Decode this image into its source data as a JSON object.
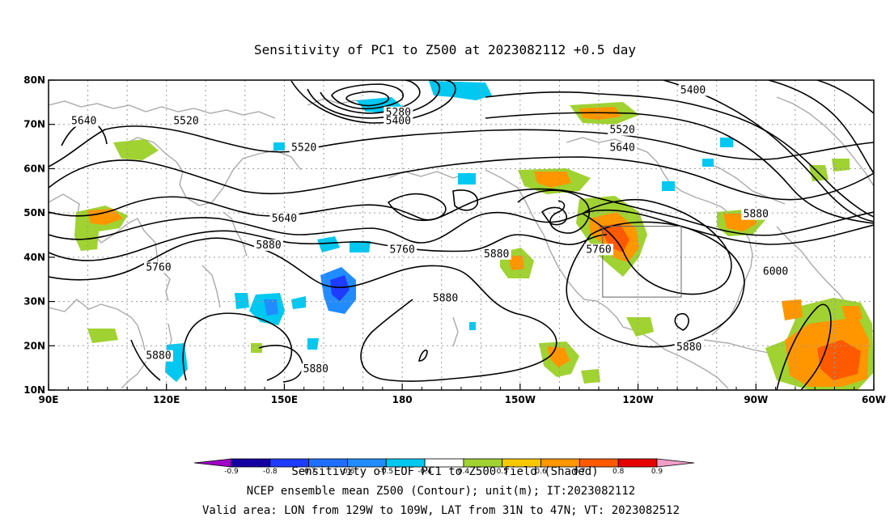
{
  "title": "Sensitivity of PC1 to Z500 at 2023082112 +0.5 day",
  "map": {
    "lon_range": [
      90,
      300
    ],
    "lat_range": [
      10,
      80
    ],
    "x_ticks": [
      {
        "lon": 90,
        "label": "90E"
      },
      {
        "lon": 120,
        "label": "120E"
      },
      {
        "lon": 150,
        "label": "150E"
      },
      {
        "lon": 180,
        "label": "180"
      },
      {
        "lon": 210,
        "label": "150W"
      },
      {
        "lon": 240,
        "label": "120W"
      },
      {
        "lon": 270,
        "label": "90W"
      },
      {
        "lon": 300,
        "label": "60W"
      }
    ],
    "y_ticks": [
      {
        "lat": 80,
        "label": "80N"
      },
      {
        "lat": 70,
        "label": "70N"
      },
      {
        "lat": 60,
        "label": "60N"
      },
      {
        "lat": 50,
        "label": "50N"
      },
      {
        "lat": 40,
        "label": "40N"
      },
      {
        "lat": 30,
        "label": "30N"
      },
      {
        "lat": 20,
        "label": "20N"
      },
      {
        "lat": 10,
        "label": "10N"
      }
    ],
    "grid": "dotted",
    "valid_box": {
      "lon_min": 231,
      "lon_max": 251,
      "lat_min": 31,
      "lat_max": 47
    },
    "contour_labels": [
      {
        "text": "5640",
        "lon": 99,
        "lat": 70
      },
      {
        "text": "5520",
        "lon": 125,
        "lat": 70
      },
      {
        "text": "5520",
        "lon": 155,
        "lat": 64
      },
      {
        "text": "5640",
        "lon": 150,
        "lat": 48
      },
      {
        "text": "5880",
        "lon": 146,
        "lat": 42
      },
      {
        "text": "5760",
        "lon": 118,
        "lat": 37
      },
      {
        "text": "5880",
        "lon": 118,
        "lat": 17
      },
      {
        "text": "5880",
        "lon": 158,
        "lat": 14
      },
      {
        "text": "5280",
        "lon": 179,
        "lat": 72
      },
      {
        "text": "5400",
        "lon": 179,
        "lat": 70
      },
      {
        "text": "5760",
        "lon": 180,
        "lat": 41
      },
      {
        "text": "5880",
        "lon": 191,
        "lat": 30
      },
      {
        "text": "5880",
        "lon": 204,
        "lat": 40
      },
      {
        "text": "5400",
        "lon": 254,
        "lat": 77
      },
      {
        "text": "5520",
        "lon": 236,
        "lat": 68
      },
      {
        "text": "5640",
        "lon": 236,
        "lat": 64
      },
      {
        "text": "5760",
        "lon": 230,
        "lat": 41
      },
      {
        "text": "5880",
        "lon": 270,
        "lat": 49
      },
      {
        "text": "6000",
        "lon": 275,
        "lat": 36
      },
      {
        "text": "5880",
        "lon": 253,
        "lat": 19
      },
      {
        "text": "5520",
        "lon": 315,
        "lat": 53
      },
      {
        "text": "5640",
        "lon": 322,
        "lat": 49
      },
      {
        "text": "5760",
        "lon": 319,
        "lat": 44
      }
    ]
  },
  "colorbar": {
    "labels": [
      "-0.9",
      "-0.8",
      "-0.7",
      "-0.6",
      "-0.5",
      "-0.4",
      "0.4",
      "0.5",
      "0.6",
      "0.7",
      "0.8",
      "0.9"
    ],
    "colors": [
      "#a000c8",
      "#1400a0",
      "#1e3cff",
      "#1f6fff",
      "#208cff",
      "#00c8f0",
      "#ffffff",
      "#a0d232",
      "#fac800",
      "#ff9600",
      "#ff5a00",
      "#e60000",
      "#f09ec8"
    ]
  },
  "captions": {
    "line1": "Sensitivity of EOF PC1 to Z500 field (Shaded)",
    "line2": "NCEP ensemble mean Z500 (Contour); unit(m); IT:2023082112",
    "line3": "Valid area: LON from 129W to 109W, LAT from 31N to 47N; VT: 2023082512"
  },
  "colors": {
    "coast": "#aaaaaa",
    "contour": "#000000",
    "positive_light": "#a0d232",
    "positive_mid": "#ff9600",
    "positive_high": "#ff5a00",
    "negative_light": "#00c8f0",
    "negative_mid": "#208cff",
    "negative_high": "#1e3cff"
  }
}
